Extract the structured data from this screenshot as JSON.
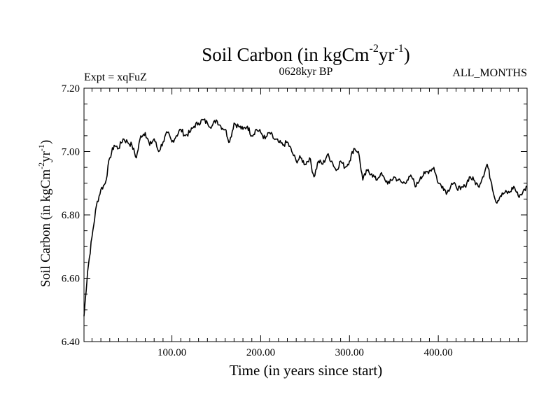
{
  "chart_data": {
    "type": "line",
    "title": "Soil Carbon (in kgCm",
    "title_sup1": "-2",
    "title_mid": "yr",
    "title_sup2": "-1",
    "title_end": ")",
    "expt_label": "Expt = xqFuZ",
    "period_label": "0628kyr BP",
    "months_label": "ALL_MONTHS",
    "xlabel": "Time (in years since start)",
    "ylabel": "Soil Carbon (in kgCm",
    "ylabel_sup1": "-2",
    "ylabel_mid": "yr",
    "ylabel_sup2": "-1",
    "ylabel_end": ")",
    "xlim": [
      1,
      500
    ],
    "ylim": [
      6.4,
      7.2
    ],
    "xticks": [
      100,
      200,
      300,
      400
    ],
    "xtick_labels": [
      "100.00",
      "200.00",
      "300.00",
      "400.00"
    ],
    "yticks": [
      6.4,
      6.6,
      6.8,
      7.0,
      7.2
    ],
    "ytick_labels": [
      "6.40",
      "6.60",
      "6.80",
      "7.00",
      "7.20"
    ],
    "series": [
      {
        "name": "Soil Carbon",
        "color": "#000000",
        "x": [
          1,
          5,
          10,
          15,
          20,
          25,
          30,
          35,
          40,
          45,
          50,
          55,
          60,
          65,
          70,
          75,
          80,
          85,
          90,
          95,
          100,
          105,
          110,
          115,
          120,
          125,
          130,
          135,
          140,
          145,
          150,
          155,
          160,
          165,
          170,
          175,
          180,
          185,
          190,
          195,
          200,
          205,
          210,
          215,
          220,
          225,
          230,
          235,
          240,
          245,
          250,
          255,
          260,
          265,
          270,
          275,
          280,
          285,
          290,
          295,
          300,
          305,
          310,
          315,
          320,
          325,
          330,
          335,
          340,
          345,
          350,
          355,
          360,
          365,
          370,
          375,
          380,
          385,
          390,
          395,
          400,
          405,
          410,
          415,
          420,
          425,
          430,
          435,
          440,
          445,
          450,
          455,
          460,
          465,
          470,
          475,
          480,
          485,
          490,
          495,
          500
        ],
        "values": [
          6.48,
          6.62,
          6.73,
          6.83,
          6.88,
          6.9,
          6.98,
          7.02,
          7.01,
          7.04,
          7.03,
          7.02,
          6.98,
          7.05,
          7.06,
          7.02,
          7.04,
          7.0,
          7.03,
          7.06,
          7.03,
          7.05,
          7.07,
          7.05,
          7.06,
          7.08,
          7.09,
          7.1,
          7.09,
          7.08,
          7.1,
          7.08,
          7.07,
          7.03,
          7.09,
          7.08,
          7.07,
          7.08,
          7.05,
          7.07,
          7.06,
          7.04,
          7.06,
          7.04,
          7.03,
          7.02,
          7.03,
          7.0,
          6.97,
          6.98,
          6.96,
          6.98,
          6.92,
          6.97,
          6.96,
          6.99,
          6.97,
          6.94,
          6.97,
          6.95,
          6.97,
          7.01,
          7.0,
          6.91,
          6.94,
          6.93,
          6.91,
          6.93,
          6.91,
          6.9,
          6.92,
          6.91,
          6.9,
          6.91,
          6.92,
          6.89,
          6.92,
          6.93,
          6.94,
          6.95,
          6.9,
          6.89,
          6.87,
          6.9,
          6.89,
          6.88,
          6.89,
          6.92,
          6.91,
          6.89,
          6.92,
          6.96,
          6.9,
          6.84,
          6.86,
          6.87,
          6.87,
          6.89,
          6.86,
          6.87,
          6.89
        ]
      }
    ]
  }
}
